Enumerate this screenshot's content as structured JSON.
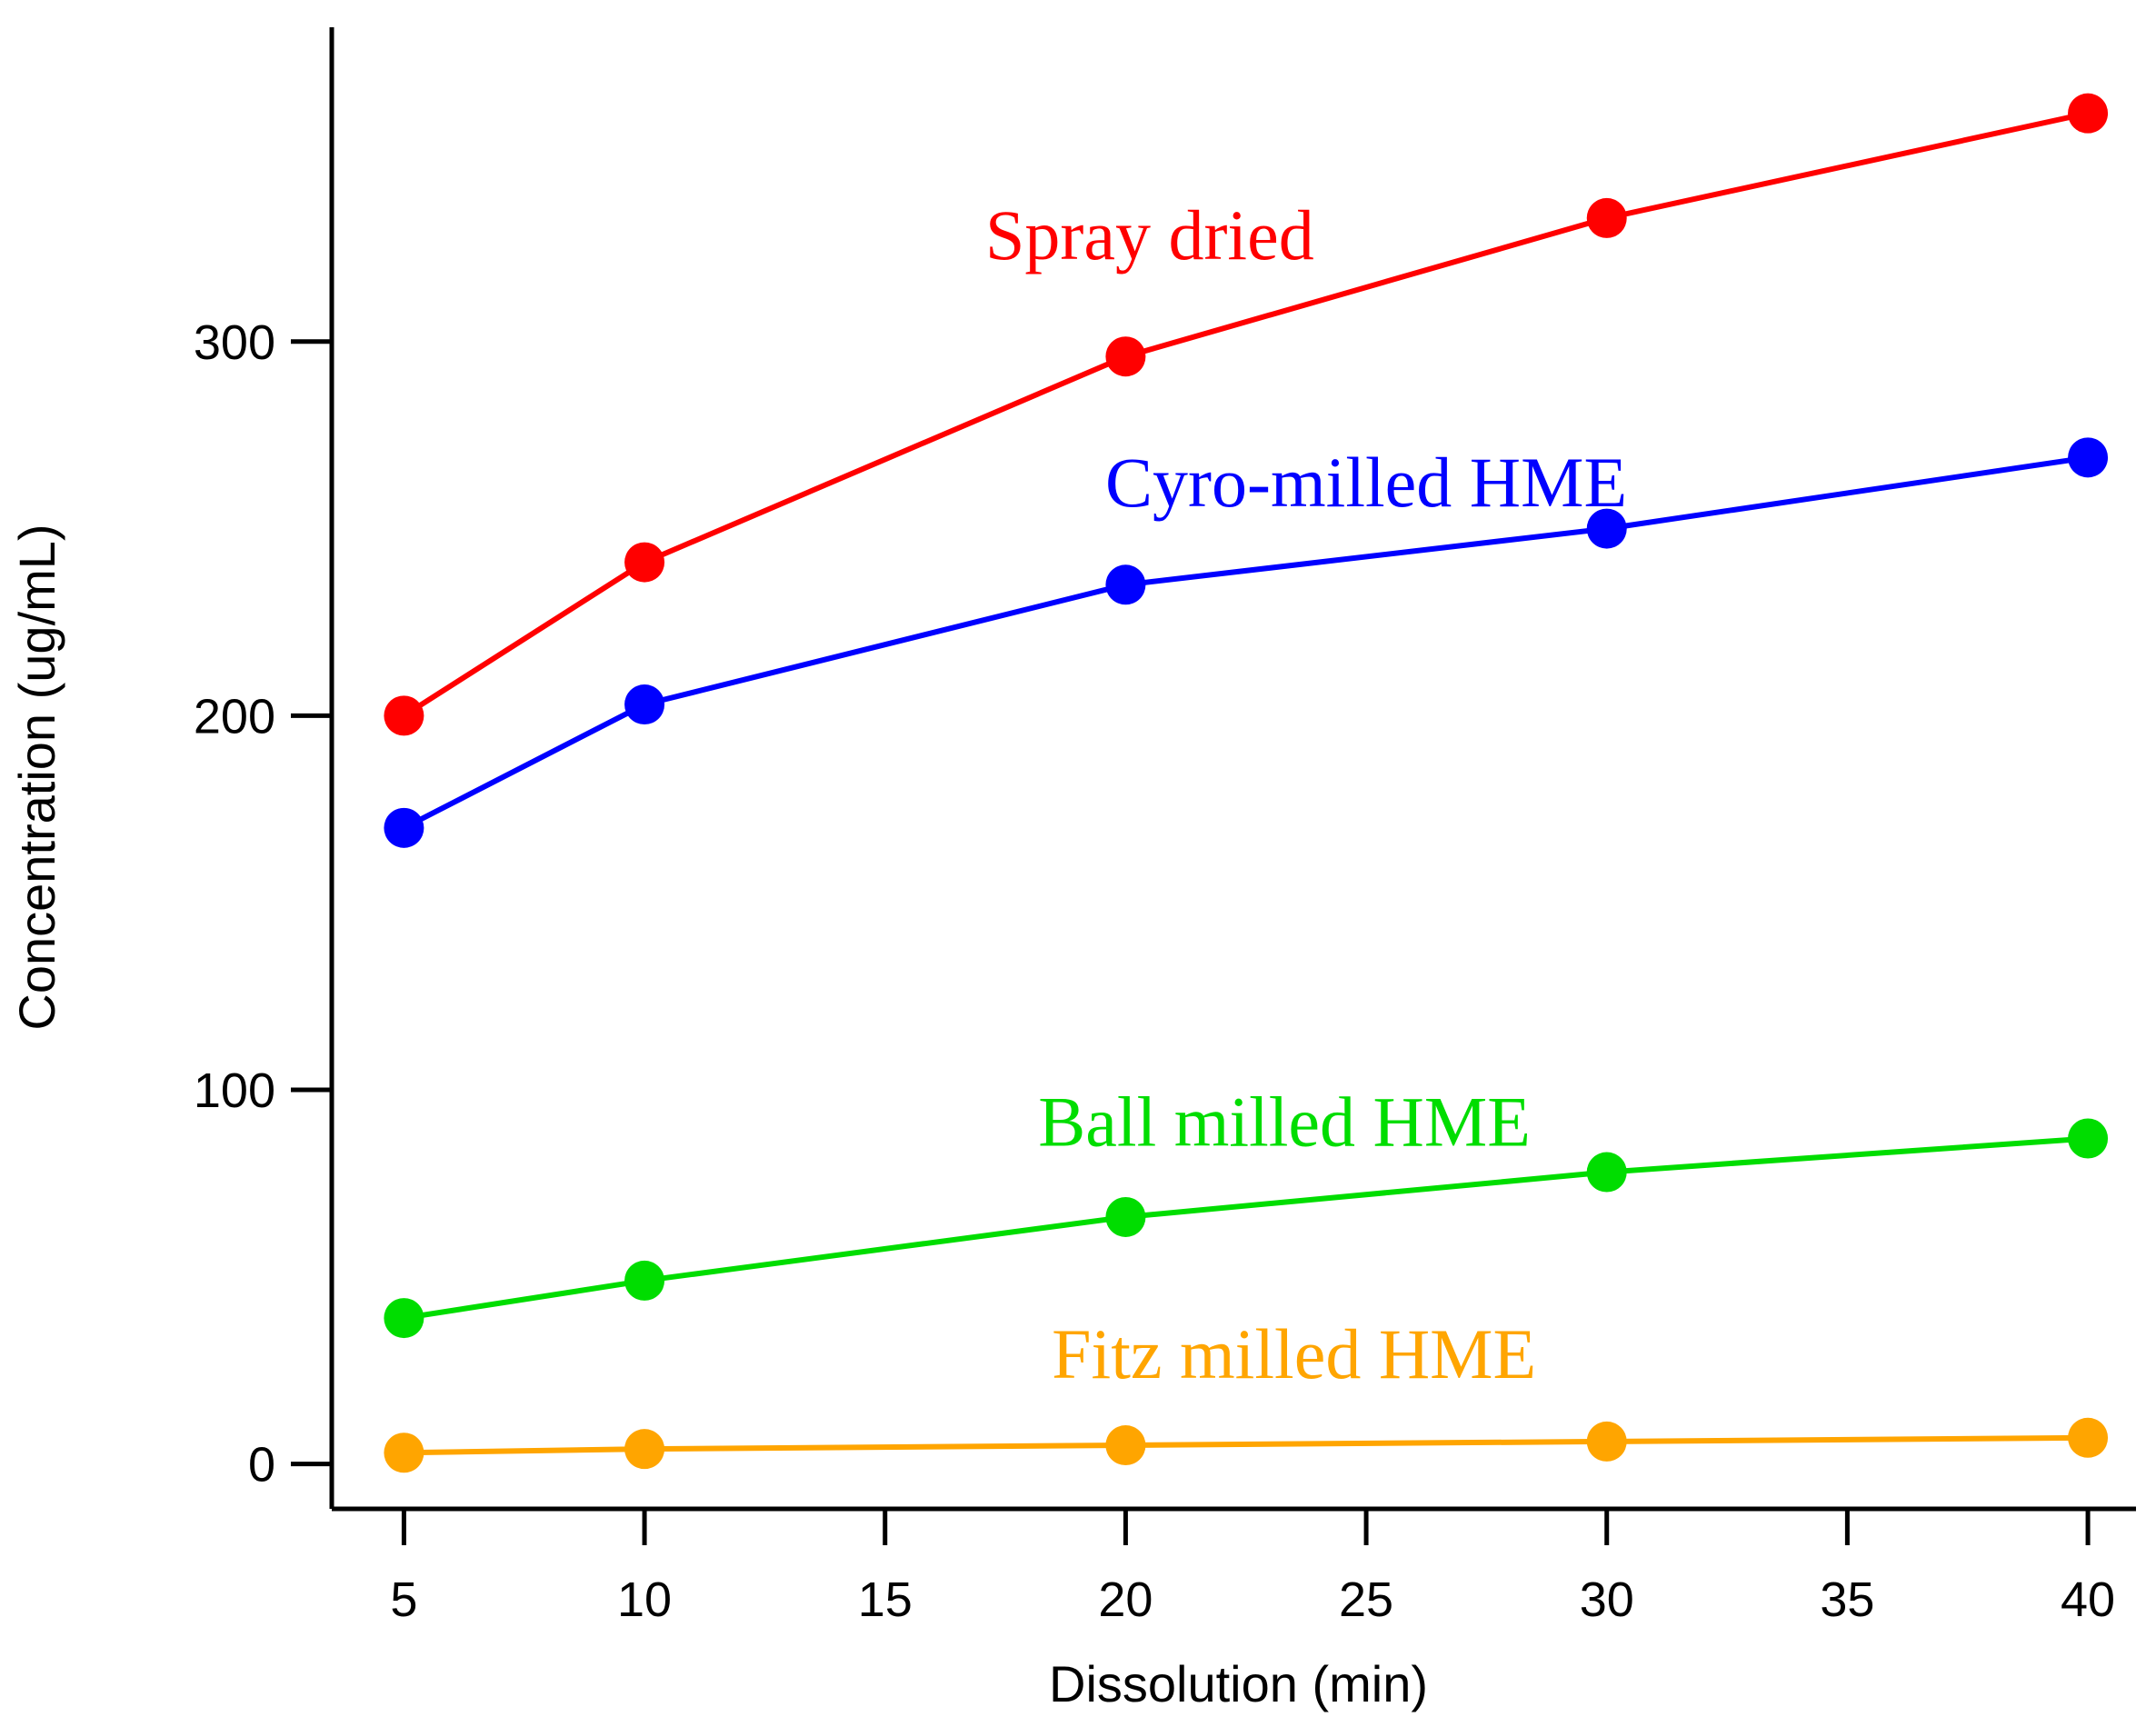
{
  "chart_data": {
    "type": "line",
    "title": "",
    "xlabel": "Dissolution (min)",
    "ylabel": "Concentration (ug/mL)",
    "xlim": [
      3.5,
      41
    ],
    "ylim": [
      -12,
      384
    ],
    "xticks": [
      5,
      10,
      15,
      20,
      25,
      30,
      35,
      40
    ],
    "yticks": [
      0,
      100,
      200,
      300
    ],
    "grid": false,
    "legend": "inline labels",
    "x": [
      5,
      10,
      20,
      30,
      40
    ],
    "series": [
      {
        "name": "Spray dried",
        "color": "#ff0000",
        "values": [
          200,
          241,
          296,
          333,
          361
        ],
        "label_at": {
          "x": 20.5,
          "y": 322
        }
      },
      {
        "name": "Cyro-milled HME",
        "color": "#0000ff",
        "values": [
          170,
          203,
          235,
          250,
          269
        ],
        "label_at": {
          "x": 25,
          "y": 256
        }
      },
      {
        "name": "Ball milled HME",
        "color": "#00dd00",
        "values": [
          39,
          49,
          66,
          78,
          87
        ],
        "label_at": {
          "x": 23.3,
          "y": 85
        }
      },
      {
        "name": "Fitz milled HME",
        "color": "#ffa500",
        "values": [
          3,
          4,
          5,
          6,
          7
        ],
        "label_at": {
          "x": 23.5,
          "y": 23
        }
      }
    ]
  }
}
